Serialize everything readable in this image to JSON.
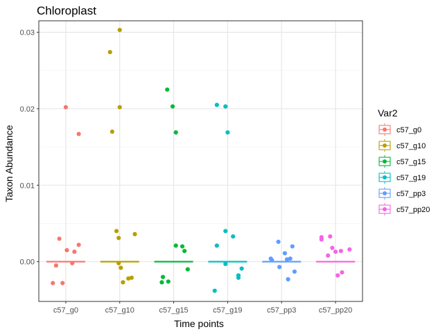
{
  "chart_data": {
    "type": "scatter",
    "title": "Chloroplast",
    "xlabel": "Time points",
    "ylabel": "Taxon Abundance",
    "categories": [
      "c57_g0",
      "c57_g10",
      "c57_g15",
      "c57_g19",
      "c57_pp3",
      "c57_pp20"
    ],
    "ylim": [
      -0.0052,
      0.0315
    ],
    "yticks": [
      0.0,
      0.01,
      0.02,
      0.03
    ],
    "ytick_labels": [
      "0.00",
      "0.01",
      "0.02",
      "0.03"
    ],
    "grid": true,
    "legend": {
      "title": "Var2",
      "placement": "right",
      "entries": [
        "c57_g0",
        "c57_g10",
        "c57_g15",
        "c57_g19",
        "c57_pp3",
        "c57_pp20"
      ]
    },
    "colors": [
      "#F8766D",
      "#B79F00",
      "#00BA38",
      "#00BFC4",
      "#619CFF",
      "#F564E3"
    ],
    "medians": [
      0.0,
      0.0,
      0.0,
      0.0,
      0.0,
      0.0
    ],
    "series": [
      {
        "name": "c57_g0",
        "points": [
          {
            "x": -0.24,
            "y": -0.0028
          },
          {
            "x": -0.18,
            "y": -0.0005
          },
          {
            "x": -0.12,
            "y": 0.003
          },
          {
            "x": -0.06,
            "y": -0.0028
          },
          {
            "x": 0.0,
            "y": 0.0202
          },
          {
            "x": 0.02,
            "y": 0.0015
          },
          {
            "x": 0.12,
            "y": -0.0002
          },
          {
            "x": 0.16,
            "y": 0.0013
          },
          {
            "x": 0.24,
            "y": 0.0022
          },
          {
            "x": 0.24,
            "y": 0.0167
          }
        ]
      },
      {
        "name": "c57_g10",
        "points": [
          {
            "x": -0.18,
            "y": 0.0274
          },
          {
            "x": -0.14,
            "y": 0.017
          },
          {
            "x": -0.06,
            "y": 0.004
          },
          {
            "x": -0.02,
            "y": 0.0031
          },
          {
            "x": -0.02,
            "y": -0.0002
          },
          {
            "x": 0.02,
            "y": -0.0008
          },
          {
            "x": 0.06,
            "y": -0.0027
          },
          {
            "x": 0.0,
            "y": 0.0303
          },
          {
            "x": 0.0,
            "y": 0.0202
          },
          {
            "x": 0.16,
            "y": -0.0022
          },
          {
            "x": 0.22,
            "y": -0.0021
          },
          {
            "x": 0.28,
            "y": 0.0036
          }
        ]
      },
      {
        "name": "c57_g15",
        "points": [
          {
            "x": -0.22,
            "y": -0.0027
          },
          {
            "x": -0.2,
            "y": -0.002
          },
          {
            "x": -0.1,
            "y": -0.0026
          },
          {
            "x": -0.12,
            "y": 0.0225
          },
          {
            "x": -0.02,
            "y": 0.0203
          },
          {
            "x": 0.04,
            "y": 0.0169
          },
          {
            "x": 0.04,
            "y": 0.0021
          },
          {
            "x": 0.16,
            "y": 0.002
          },
          {
            "x": 0.2,
            "y": 0.0014
          },
          {
            "x": 0.26,
            "y": -0.001
          }
        ]
      },
      {
        "name": "c57_g19",
        "points": [
          {
            "x": -0.24,
            "y": -0.0038
          },
          {
            "x": -0.2,
            "y": 0.0205
          },
          {
            "x": -0.2,
            "y": 0.0021
          },
          {
            "x": -0.04,
            "y": 0.004
          },
          {
            "x": -0.04,
            "y": -0.0003
          },
          {
            "x": -0.04,
            "y": 0.0203
          },
          {
            "x": 0.0,
            "y": 0.0169
          },
          {
            "x": 0.1,
            "y": 0.0033
          },
          {
            "x": 0.2,
            "y": -0.0018
          },
          {
            "x": 0.2,
            "y": -0.0021
          },
          {
            "x": 0.26,
            "y": -0.0009
          }
        ]
      },
      {
        "name": "c57_pp3",
        "points": [
          {
            "x": -0.2,
            "y": 0.0004
          },
          {
            "x": -0.18,
            "y": 0.0002
          },
          {
            "x": -0.06,
            "y": 0.0026
          },
          {
            "x": -0.04,
            "y": -0.0007
          },
          {
            "x": 0.06,
            "y": 0.0011
          },
          {
            "x": 0.1,
            "y": 0.0003
          },
          {
            "x": 0.12,
            "y": -0.0023
          },
          {
            "x": 0.16,
            "y": 0.0004
          },
          {
            "x": 0.2,
            "y": 0.002
          },
          {
            "x": 0.24,
            "y": -0.0013
          }
        ]
      },
      {
        "name": "c57_pp20",
        "points": [
          {
            "x": -0.26,
            "y": 0.0029
          },
          {
            "x": -0.26,
            "y": 0.0032
          },
          {
            "x": -0.14,
            "y": 0.0008
          },
          {
            "x": -0.1,
            "y": 0.0033
          },
          {
            "x": -0.06,
            "y": 0.0018
          },
          {
            "x": 0.0,
            "y": 0.0013
          },
          {
            "x": 0.04,
            "y": -0.0018
          },
          {
            "x": 0.1,
            "y": 0.0014
          },
          {
            "x": 0.12,
            "y": -0.0014
          },
          {
            "x": 0.26,
            "y": 0.0016
          }
        ]
      }
    ]
  }
}
